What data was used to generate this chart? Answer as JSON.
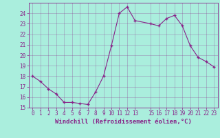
{
  "x": [
    0,
    1,
    2,
    3,
    4,
    5,
    6,
    7,
    8,
    9,
    10,
    11,
    12,
    13,
    15,
    16,
    17,
    18,
    19,
    20,
    21,
    22,
    23
  ],
  "y": [
    18,
    17.5,
    16.8,
    16.3,
    15.5,
    15.5,
    15.4,
    15.3,
    16.5,
    18.0,
    20.9,
    24.0,
    24.6,
    23.3,
    23.0,
    22.8,
    23.5,
    23.8,
    22.8,
    20.9,
    19.8,
    19.4,
    18.9
  ],
  "line_color": "#882288",
  "marker_color": "#882288",
  "bg_color": "#aaeedd",
  "grid_color": "#882288",
  "xlabel": "Windchill (Refroidissement éolien,°C)",
  "ylim": [
    15,
    25
  ],
  "xlim": [
    -0.5,
    23.5
  ],
  "yticks": [
    15,
    16,
    17,
    18,
    19,
    20,
    21,
    22,
    23,
    24
  ],
  "xticks": [
    0,
    1,
    2,
    3,
    4,
    5,
    6,
    7,
    8,
    9,
    10,
    11,
    12,
    13,
    15,
    16,
    17,
    18,
    19,
    20,
    21,
    22,
    23
  ],
  "tick_label_fontsize": 5.5,
  "xlabel_fontsize": 6.5
}
